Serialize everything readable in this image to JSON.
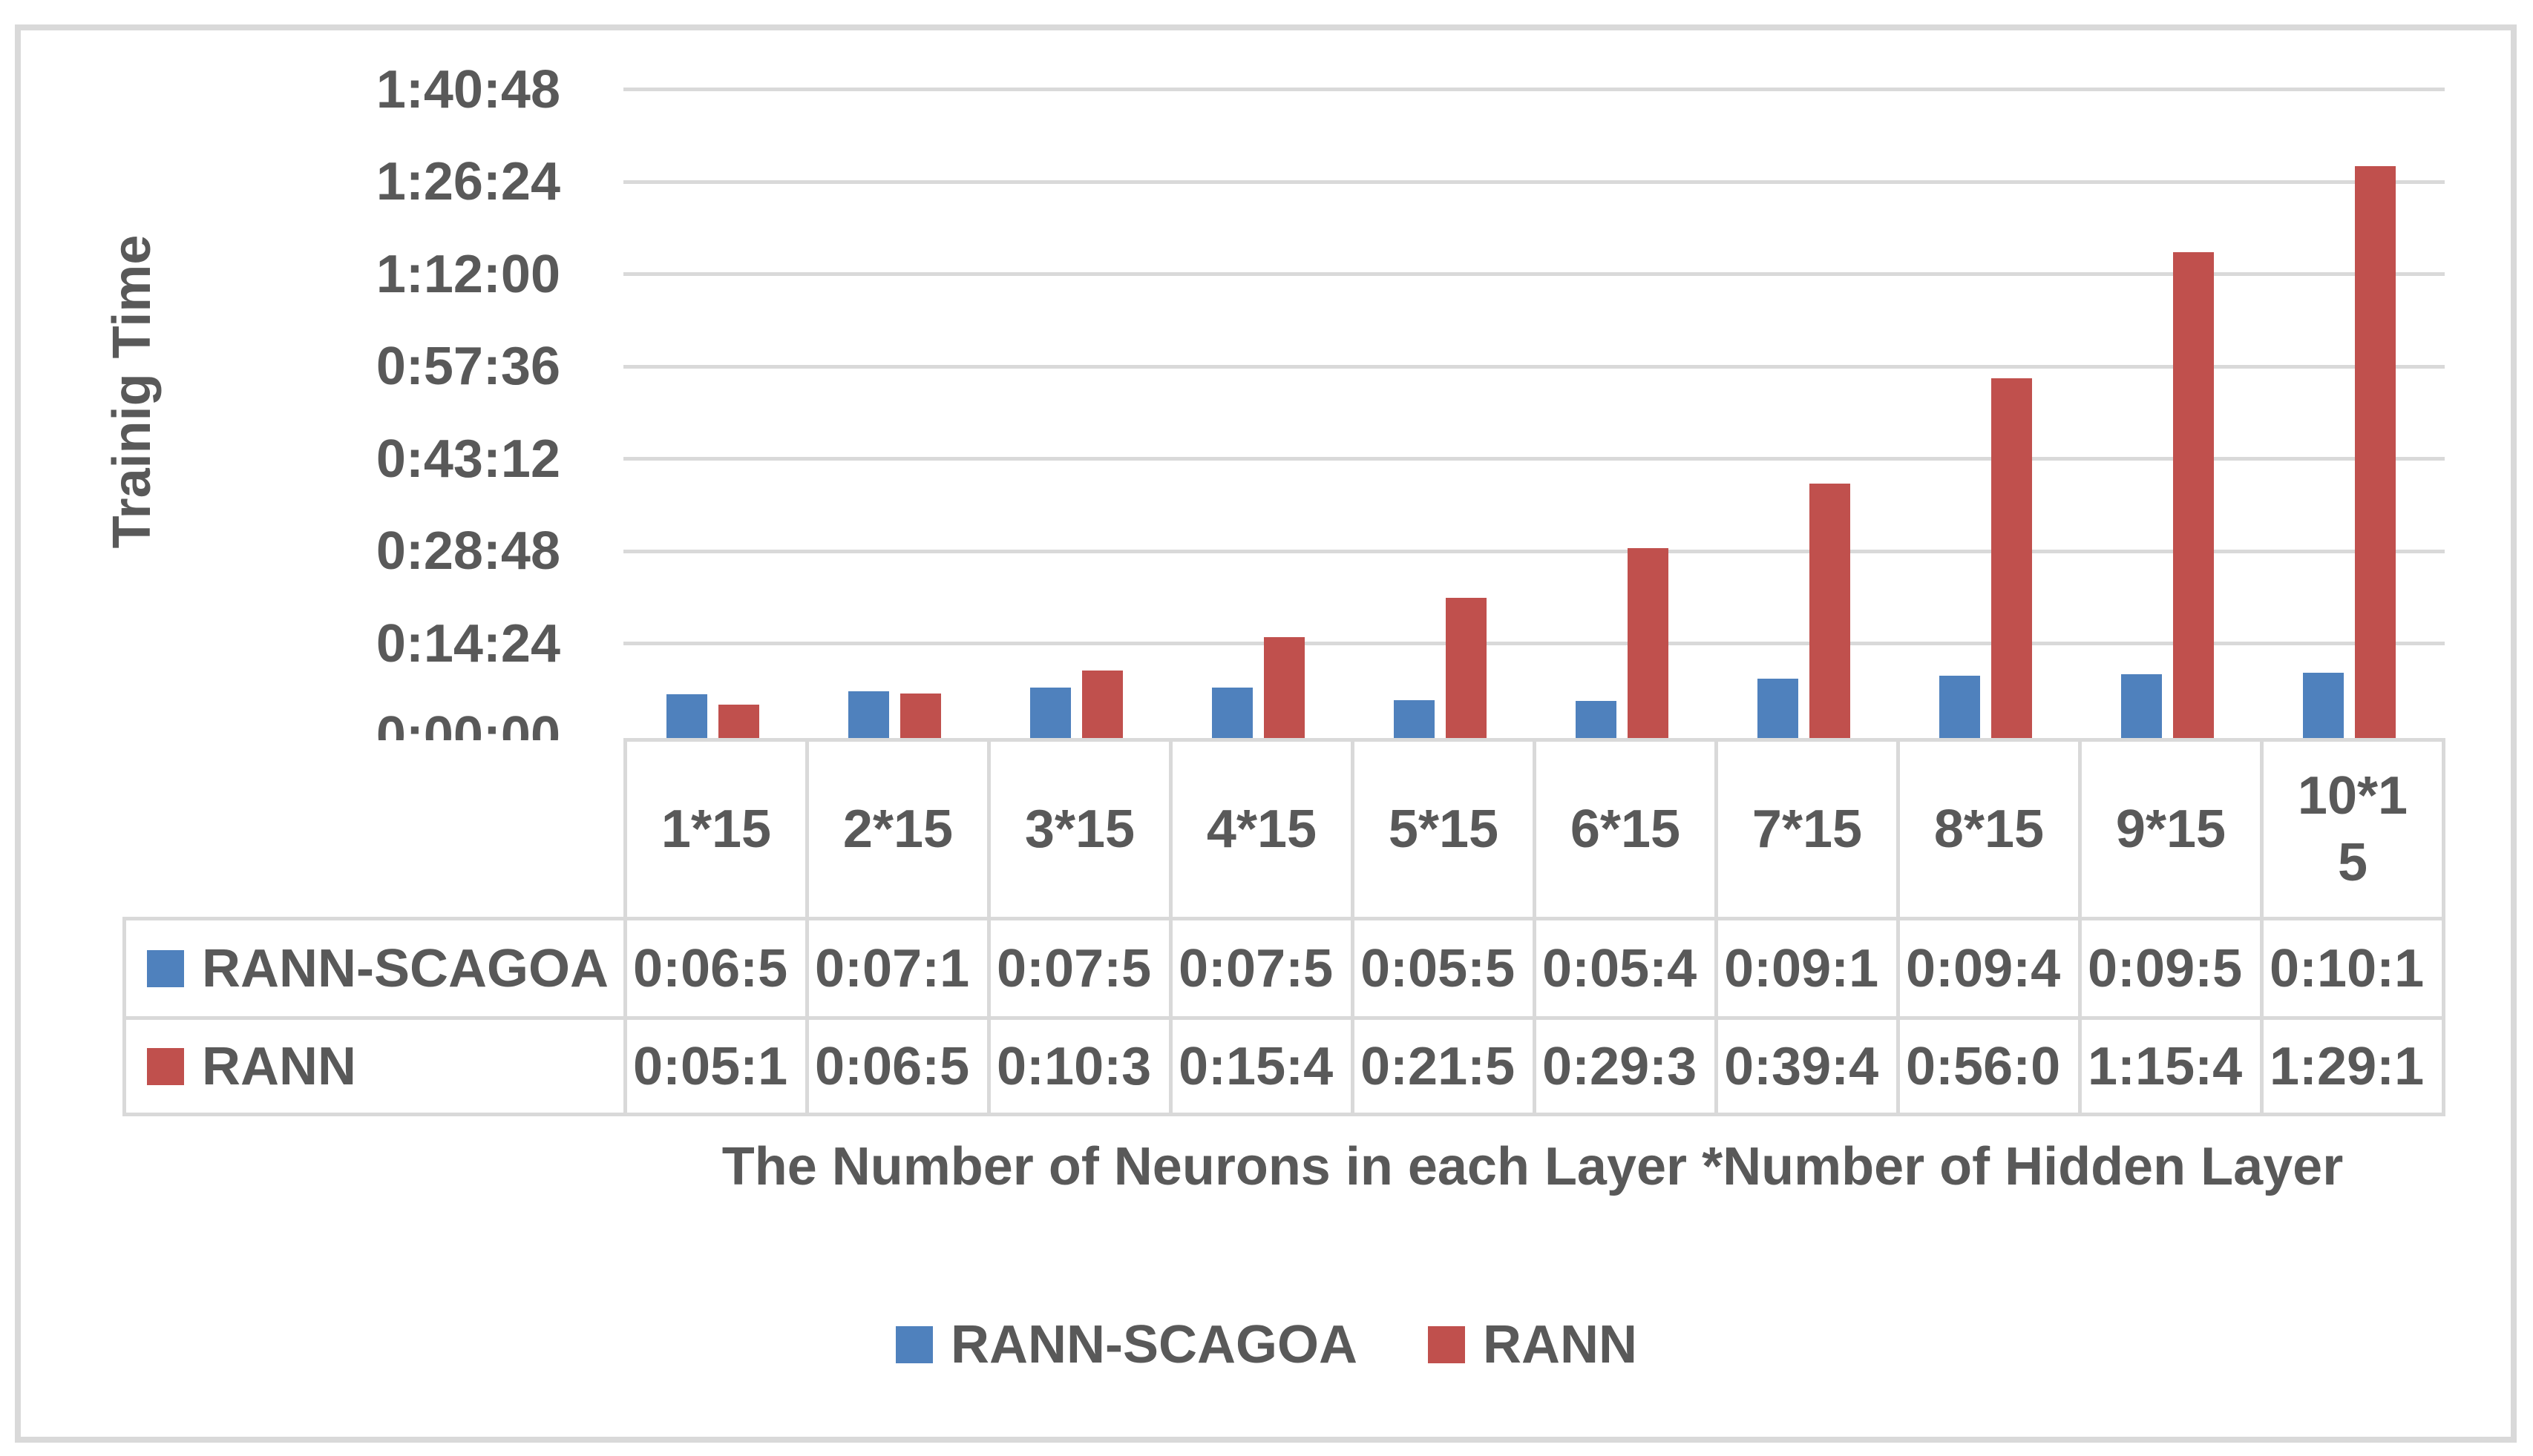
{
  "chart_data": {
    "type": "bar",
    "title": "",
    "ylabel": "Trainig Time",
    "xlabel": "The Number of Neurons in each Layer *Number of Hidden Layer",
    "categories": [
      "1*15",
      "2*15",
      "3*15",
      "4*15",
      "5*15",
      "6*15",
      "7*15",
      "8*15",
      "9*15",
      "10*15"
    ],
    "y_tick_labels": [
      "1:40:48",
      "1:26:24",
      "1:12:00",
      "0:57:36",
      "0:43:12",
      "0:28:48",
      "0:14:24",
      "0:00:00"
    ],
    "ylim_seconds": [
      0,
      6048
    ],
    "ytick_interval_seconds": 864,
    "grid": true,
    "legend_position": "bottom",
    "series": [
      {
        "name": "RANN-SCAGOA",
        "color": "#4F81BD",
        "table_display_values": [
          "0:06:5",
          "0:07:1",
          "0:07:5",
          "0:07:5",
          "0:05:5",
          "0:05:4",
          "0:09:1",
          "0:09:4",
          "0:09:5",
          "0:10:1"
        ],
        "approx_seconds": [
          410,
          435,
          470,
          475,
          355,
          345,
          555,
          585,
          595,
          612
        ]
      },
      {
        "name": "RANN",
        "color": "#C0504D",
        "table_display_values": [
          "0:05:1",
          "0:06:5",
          "0:10:3",
          "0:15:4",
          "0:21:5",
          "0:29:3",
          "0:39:4",
          "0:56:0",
          "1:15:4",
          "1:29:1"
        ],
        "approx_seconds": [
          315,
          415,
          635,
          945,
          1315,
          1775,
          2385,
          3365,
          4545,
          5355
        ]
      }
    ]
  },
  "colors": {
    "text": "#595959",
    "gridline": "#d9d9d9",
    "series_blue": "#4F81BD",
    "series_red": "#C0504D",
    "background": "#ffffff"
  }
}
